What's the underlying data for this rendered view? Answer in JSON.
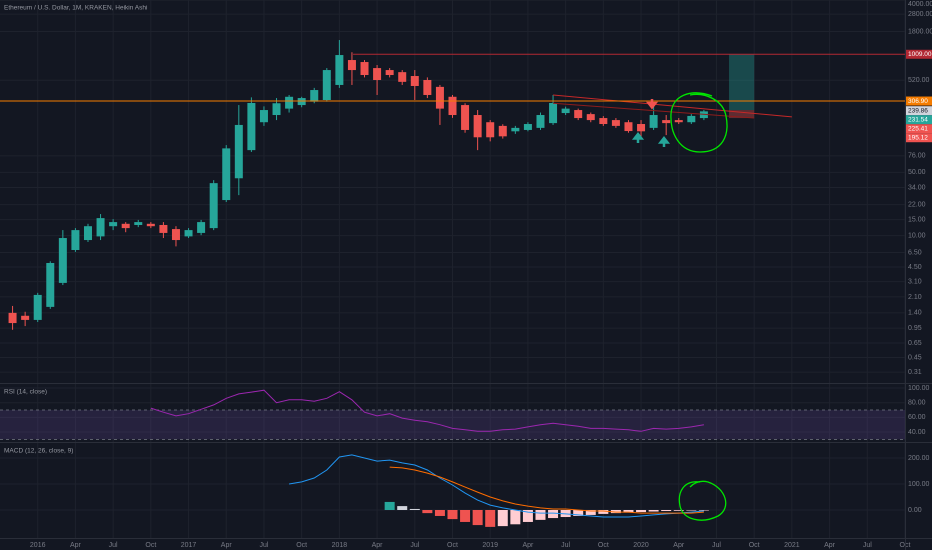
{
  "chart_data": [
    {
      "type": "candlestick",
      "title": "Ethereum / U.S. Dollar, 1M, KRAKEN, Heikin Ashi",
      "log_scale": true,
      "up_color": "#26a69a",
      "down_color": "#ef5350",
      "xlim": [
        "2015-10",
        "2021-10"
      ],
      "xticks": [
        {
          "value": "2016-01",
          "label": "2016"
        },
        {
          "value": "2016-04",
          "label": "Apr"
        },
        {
          "value": "2016-07",
          "label": "Jul"
        },
        {
          "value": "2016-10",
          "label": "Oct"
        },
        {
          "value": "2017-01",
          "label": "2017"
        },
        {
          "value": "2017-04",
          "label": "Apr"
        },
        {
          "value": "2017-07",
          "label": "Jul"
        },
        {
          "value": "2017-10",
          "label": "Oct"
        },
        {
          "value": "2018-01",
          "label": "2018"
        },
        {
          "value": "2018-04",
          "label": "Apr"
        },
        {
          "value": "2018-07",
          "label": "Jul"
        },
        {
          "value": "2018-10",
          "label": "Oct"
        },
        {
          "value": "2019-01",
          "label": "2019"
        },
        {
          "value": "2019-04",
          "label": "Apr"
        },
        {
          "value": "2019-07",
          "label": "Jul"
        },
        {
          "value": "2019-10",
          "label": "Oct"
        },
        {
          "value": "2020-01",
          "label": "2020"
        },
        {
          "value": "2020-04",
          "label": "Apr"
        },
        {
          "value": "2020-07",
          "label": "Jul"
        },
        {
          "value": "2020-10",
          "label": "Oct"
        },
        {
          "value": "2021-01",
          "label": "2021"
        },
        {
          "value": "2021-04",
          "label": "Apr"
        },
        {
          "value": "2021-07",
          "label": "Jul"
        },
        {
          "value": "2021-10",
          "label": "Oct"
        }
      ],
      "ylim": [
        0.235,
        4013
      ],
      "yticks": [
        0.31,
        0.45,
        0.65,
        0.95,
        {
          "value": 1.4,
          "label": "1.40"
        },
        {
          "value": 2.1,
          "label": "2.10"
        },
        {
          "value": 3.1,
          "label": "3.10"
        },
        {
          "value": 4.5,
          "label": "4.50"
        },
        {
          "value": 6.5,
          "label": "6.50"
        },
        {
          "value": 10,
          "label": "10.00"
        },
        {
          "value": 15,
          "label": "15.00"
        },
        {
          "value": 22,
          "label": "22.00"
        },
        {
          "value": 34,
          "label": "34.00"
        },
        {
          "value": 50,
          "label": "50.00"
        },
        {
          "value": 76,
          "label": "76.00"
        },
        {
          "value": 520,
          "label": "520.00"
        },
        {
          "value": 1800,
          "label": "1800.00"
        },
        {
          "value": 2800,
          "label": "2800.00"
        },
        {
          "value": 4000,
          "label": "4000.00"
        }
      ],
      "x": [
        "2015-11",
        "2015-12",
        "2016-01",
        "2016-02",
        "2016-03",
        "2016-04",
        "2016-05",
        "2016-06",
        "2016-07",
        "2016-08",
        "2016-09",
        "2016-10",
        "2016-11",
        "2016-12",
        "2017-01",
        "2017-02",
        "2017-03",
        "2017-04",
        "2017-05",
        "2017-06",
        "2017-07",
        "2017-08",
        "2017-09",
        "2017-10",
        "2017-11",
        "2017-12",
        "2018-01",
        "2018-02",
        "2018-03",
        "2018-04",
        "2018-05",
        "2018-06",
        "2018-07",
        "2018-08",
        "2018-09",
        "2018-10",
        "2018-11",
        "2018-12",
        "2019-01",
        "2019-02",
        "2019-03",
        "2019-04",
        "2019-05",
        "2019-06",
        "2019-07",
        "2019-08",
        "2019-09",
        "2019-10",
        "2019-11",
        "2019-12",
        "2020-01",
        "2020-02",
        "2020-03",
        "2020-04",
        "2020-05",
        "2020-06"
      ],
      "open": [
        1.4,
        1.3,
        1.17,
        1.63,
        3.0,
        6.93,
        8.93,
        9.8,
        12.7,
        13.5,
        13.1,
        13.5,
        13.1,
        11.8,
        9.8,
        10.7,
        12.1,
        24.7,
        43,
        88,
        179,
        215,
        253,
        277,
        302,
        315,
        462,
        871,
        828,
        710,
        675,
        640,
        580,
        524,
        440,
        342,
        277,
        215,
        179,
        163,
        142,
        147,
        155,
        175,
        226,
        244,
        220,
        199,
        189,
        179,
        171,
        155,
        189,
        189,
        179,
        199
      ],
      "high": [
        1.67,
        1.44,
        2.33,
        5.2,
        11.5,
        12.1,
        13.5,
        17.3,
        15.2,
        14.1,
        14.9,
        14.1,
        14.1,
        12.7,
        12.1,
        14.9,
        41,
        100,
        277,
        337,
        268,
        331,
        358,
        342,
        429,
        710,
        1449,
        1062,
        871,
        767,
        710,
        675,
        675,
        560,
        462,
        358,
        290,
        244,
        189,
        170,
        163,
        179,
        229,
        358,
        266,
        253,
        229,
        209,
        199,
        189,
        189,
        290,
        215,
        199,
        220,
        244
      ],
      "low": [
        0.91,
        1.0,
        1.11,
        1.55,
        2.84,
        6.6,
        8.5,
        8.93,
        11.5,
        10.9,
        12.4,
        12.1,
        9.4,
        7.6,
        9.4,
        10.1,
        11.5,
        23.5,
        28,
        84,
        163,
        189,
        229,
        262,
        290,
        302,
        429,
        462,
        560,
        358,
        560,
        462,
        315,
        331,
        167,
        200,
        137,
        88,
        110,
        118,
        133,
        142,
        147,
        167,
        215,
        189,
        179,
        163,
        155,
        137,
        122,
        147,
        129,
        171,
        171,
        189
      ],
      "close": [
        1.08,
        1.17,
        2.21,
        4.98,
        9.4,
        11.5,
        12.7,
        15.6,
        14.1,
        12.1,
        14.1,
        12.7,
        10.7,
        8.93,
        11.5,
        14.1,
        38,
        92,
        167,
        292,
        244,
        290,
        342,
        331,
        406,
        675,
        989,
        675,
        595,
        524,
        595,
        500,
        450,
        358,
        253,
        215,
        147,
        122,
        122,
        125,
        155,
        171,
        215,
        292,
        253,
        199,
        189,
        171,
        163,
        143,
        142,
        215,
        175,
        179,
        210,
        236
      ],
      "price_lines": [
        {
          "value": 1009,
          "label": "1009.00",
          "color": "#b22833"
        },
        {
          "value": 306.9,
          "label": "306.90",
          "color": "#f57c00"
        }
      ],
      "price_labels": [
        {
          "value": 239.86,
          "label": "239.86",
          "color": "#d1d4dc"
        },
        {
          "value": 231.54,
          "label": "231.54",
          "color": "#26a69a"
        },
        {
          "value": 225.41,
          "label": "225.41",
          "color": "#ef5350"
        },
        {
          "value": 195.12,
          "label": "195.12",
          "color": "#ef5350"
        }
      ],
      "trendlines": [
        {
          "x": [
            "2019-06",
            "2021-01"
          ],
          "values": [
            358,
            205
          ],
          "color": "#c62828"
        },
        {
          "x": [
            "2019-06",
            "2020-10"
          ],
          "values": [
            290,
            199
          ],
          "color": "#8e1c1c"
        }
      ],
      "position": {
        "x": [
          "2020-08",
          "2020-10"
        ],
        "target": 1009,
        "entry": 244,
        "stop": 199,
        "target_color": "rgba(38,166,154,0.35)",
        "stop_color": "rgba(239,83,80,0.35)"
      }
    },
    {
      "type": "line",
      "title": "RSI (14, close)",
      "color": "#9c27b0",
      "band": [
        30,
        70
      ],
      "band_color": "rgba(126,87,194,0.18)",
      "ylim": [
        26.4,
        105.5
      ],
      "yticks": [
        {
          "value": 100,
          "label": "100.00"
        },
        {
          "value": 80,
          "label": "80.00"
        },
        {
          "value": 60,
          "label": "60.00"
        },
        {
          "value": 40,
          "label": "40.00"
        }
      ],
      "x": [
        "2016-10",
        "2016-11",
        "2016-12",
        "2017-01",
        "2017-02",
        "2017-03",
        "2017-04",
        "2017-05",
        "2017-06",
        "2017-07",
        "2017-08",
        "2017-09",
        "2017-10",
        "2017-11",
        "2017-12",
        "2018-01",
        "2018-02",
        "2018-03",
        "2018-04",
        "2018-05",
        "2018-06",
        "2018-07",
        "2018-08",
        "2018-09",
        "2018-10",
        "2018-11",
        "2018-12",
        "2019-01",
        "2019-02",
        "2019-03",
        "2019-04",
        "2019-05",
        "2019-06",
        "2019-07",
        "2019-08",
        "2019-09",
        "2019-10",
        "2019-11",
        "2019-12",
        "2020-01",
        "2020-02",
        "2020-03",
        "2020-04",
        "2020-05",
        "2020-06"
      ],
      "values": [
        72.7,
        67,
        62,
        65,
        71,
        77,
        86,
        92,
        94.5,
        97,
        80,
        84,
        84,
        82,
        86,
        95,
        84,
        67,
        62,
        65,
        59,
        56,
        54,
        50,
        45,
        43,
        41,
        41,
        43,
        44,
        47,
        50,
        52,
        50,
        48,
        45,
        45,
        44,
        43,
        41,
        45,
        44,
        45,
        47,
        50
      ]
    },
    {
      "type": "macd",
      "title": "MACD (12, 26, close, 9)",
      "ylim": [
        -107.7,
        257.7
      ],
      "yticks": [
        {
          "value": 200,
          "label": "200.00"
        },
        {
          "value": 100,
          "label": "100.00"
        },
        {
          "value": 0,
          "label": "0.00"
        }
      ],
      "series": [
        {
          "color": "#2196f3",
          "x": [
            "2017-09",
            "2017-10",
            "2017-11",
            "2017-12",
            "2018-01",
            "2018-02",
            "2018-03",
            "2018-04",
            "2018-05",
            "2018-06",
            "2018-07",
            "2018-08",
            "2018-09",
            "2018-10",
            "2018-11",
            "2018-12",
            "2019-01",
            "2019-02",
            "2019-03",
            "2019-04",
            "2019-05",
            "2019-06",
            "2019-07",
            "2019-08",
            "2019-09",
            "2019-10",
            "2019-11",
            "2019-12",
            "2020-01",
            "2020-02",
            "2020-03",
            "2020-04",
            "2020-05",
            "2020-06"
          ],
          "values": [
            100,
            108,
            123,
            154,
            204,
            212,
            200,
            188,
            192,
            181,
            173,
            154,
            123,
            96,
            65,
            38,
            19,
            8,
            0,
            -8,
            -12,
            -12,
            -15,
            -19,
            -23,
            -27,
            -27,
            -27,
            -23,
            -19,
            -15,
            -12,
            -8,
            -4
          ]
        },
        {
          "color": "#ff6d00",
          "x": [
            "2018-05",
            "2018-06",
            "2018-07",
            "2018-08",
            "2018-09",
            "2018-10",
            "2018-11",
            "2018-12",
            "2019-01",
            "2019-02",
            "2019-03",
            "2019-04",
            "2019-05",
            "2019-06",
            "2019-07",
            "2019-08",
            "2019-09",
            "2019-10",
            "2019-11",
            "2019-12",
            "2020-01",
            "2020-02",
            "2020-03",
            "2020-04",
            "2020-05",
            "2020-06"
          ],
          "values": [
            165,
            162,
            154,
            142,
            127,
            108,
            88,
            69,
            50,
            35,
            23,
            15,
            8,
            4,
            4,
            0,
            -4,
            -4,
            -8,
            -8,
            -12,
            -12,
            -12,
            -12,
            -12,
            -8
          ]
        }
      ],
      "histogram": {
        "colors": {
          "pos_rise": "#26a69a",
          "pos_fall": "#d1d4dc",
          "neg_grow": "#ef5350",
          "neg_fall": "#ffcdd2"
        },
        "x": [
          "2018-05",
          "2018-06",
          "2018-07",
          "2018-08",
          "2018-09",
          "2018-10",
          "2018-11",
          "2018-12",
          "2019-01",
          "2019-02",
          "2019-03",
          "2019-04",
          "2019-05",
          "2019-06",
          "2019-07",
          "2019-08",
          "2019-09",
          "2019-10",
          "2019-11",
          "2019-12",
          "2020-01",
          "2020-02",
          "2020-03",
          "2020-04",
          "2020-05",
          "2020-06"
        ],
        "values": [
          31,
          15,
          4,
          -12,
          -23,
          -35,
          -46,
          -58,
          -65,
          -62,
          -55,
          -46,
          -38,
          -31,
          -27,
          -23,
          -19,
          -15,
          -12,
          -10,
          -8,
          -6,
          -4,
          -3,
          -2,
          -1
        ]
      }
    }
  ]
}
